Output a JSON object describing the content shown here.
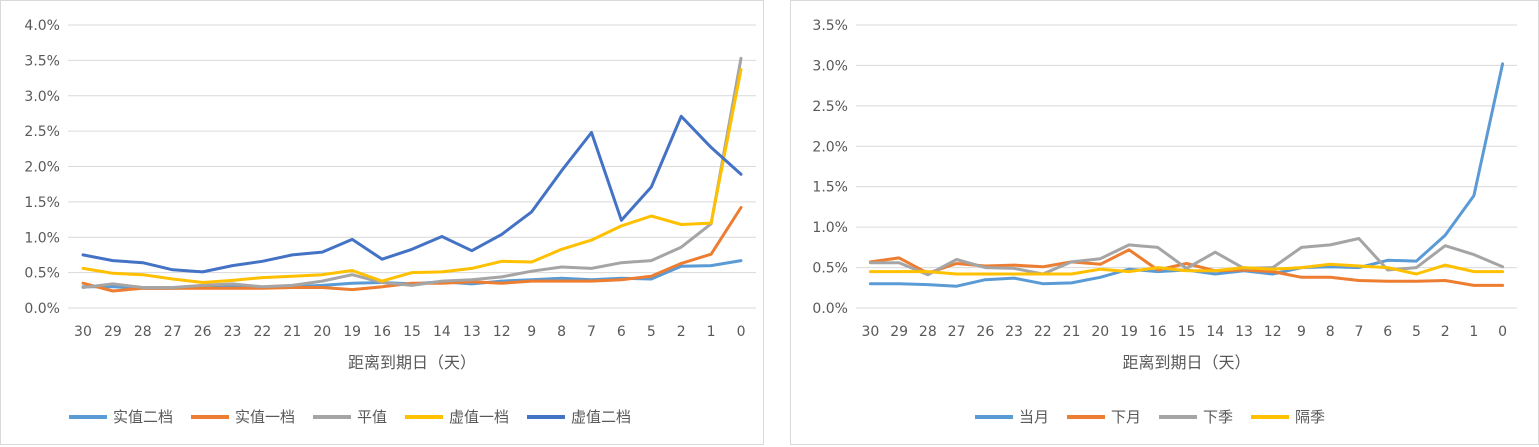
{
  "chart_data": [
    {
      "type": "line",
      "xlabel": "距离到期日（天）",
      "ylabel": "",
      "ylim": [
        0,
        0.04
      ],
      "y_ticks": [
        "0.0%",
        "0.5%",
        "1.0%",
        "1.5%",
        "2.0%",
        "2.5%",
        "3.0%",
        "3.5%",
        "4.0%"
      ],
      "categories": [
        "30",
        "29",
        "28",
        "27",
        "26",
        "23",
        "22",
        "21",
        "20",
        "19",
        "16",
        "15",
        "14",
        "13",
        "12",
        "9",
        "8",
        "7",
        "6",
        "5",
        "2",
        "1",
        "0"
      ],
      "grid": true,
      "legend_position": "bottom",
      "series": [
        {
          "name": "实值二档",
          "color": "#5b9bd5",
          "values": [
            0.003,
            0.003,
            0.0028,
            0.0028,
            0.0029,
            0.0031,
            0.0029,
            0.003,
            0.0032,
            0.0035,
            0.0036,
            0.0034,
            0.0037,
            0.0034,
            0.0038,
            0.004,
            0.0042,
            0.004,
            0.0042,
            0.0041,
            0.0059,
            0.006,
            0.0067
          ]
        },
        {
          "name": "实值一档",
          "color": "#ed7d31",
          "values": [
            0.0035,
            0.0024,
            0.0028,
            0.0028,
            0.0028,
            0.0028,
            0.0028,
            0.0029,
            0.0029,
            0.0026,
            0.003,
            0.0035,
            0.0035,
            0.0037,
            0.0035,
            0.0038,
            0.0038,
            0.0038,
            0.004,
            0.0045,
            0.0063,
            0.0076,
            0.0142
          ]
        },
        {
          "name": "平值",
          "color": "#a5a5a5",
          "values": [
            0.0029,
            0.0034,
            0.0029,
            0.0029,
            0.0032,
            0.0034,
            0.003,
            0.0032,
            0.0038,
            0.0047,
            0.0036,
            0.0032,
            0.0038,
            0.004,
            0.0044,
            0.0052,
            0.0058,
            0.0056,
            0.0064,
            0.0067,
            0.0086,
            0.0119,
            0.0353
          ]
        },
        {
          "name": "虚值一档",
          "color": "#ffc000",
          "values": [
            0.0056,
            0.0049,
            0.0047,
            0.0041,
            0.0036,
            0.0039,
            0.0043,
            0.0045,
            0.0047,
            0.0053,
            0.0038,
            0.005,
            0.0051,
            0.0056,
            0.0066,
            0.0065,
            0.0083,
            0.0096,
            0.0116,
            0.013,
            0.0118,
            0.012,
            0.0337
          ]
        },
        {
          "name": "虚值二档",
          "color": "#4472c4",
          "values": [
            0.0075,
            0.0067,
            0.0064,
            0.0054,
            0.0051,
            0.006,
            0.0066,
            0.0075,
            0.0079,
            0.0097,
            0.0069,
            0.0083,
            0.0101,
            0.0081,
            0.0104,
            0.0136,
            0.0194,
            0.0248,
            0.0124,
            0.0171,
            0.0271,
            0.0227,
            0.0189
          ]
        }
      ]
    },
    {
      "type": "line",
      "xlabel": "距离到期日（天）",
      "ylabel": "",
      "ylim": [
        0,
        0.035
      ],
      "y_ticks": [
        "0.0%",
        "0.5%",
        "1.0%",
        "1.5%",
        "2.0%",
        "2.5%",
        "3.0%",
        "3.5%"
      ],
      "categories": [
        "30",
        "29",
        "28",
        "27",
        "26",
        "23",
        "22",
        "21",
        "20",
        "19",
        "16",
        "15",
        "14",
        "13",
        "12",
        "9",
        "8",
        "7",
        "6",
        "5",
        "2",
        "1",
        "0"
      ],
      "grid": true,
      "legend_position": "bottom",
      "series": [
        {
          "name": "当月",
          "color": "#5b9bd5",
          "values": [
            0.003,
            0.003,
            0.0029,
            0.0027,
            0.0035,
            0.0037,
            0.003,
            0.0031,
            0.0038,
            0.0048,
            0.0045,
            0.0047,
            0.0042,
            0.0046,
            0.0042,
            0.005,
            0.0051,
            0.005,
            0.0059,
            0.0058,
            0.009,
            0.0139,
            0.0302
          ]
        },
        {
          "name": "下月",
          "color": "#ed7d31",
          "values": [
            0.0057,
            0.0062,
            0.0043,
            0.0055,
            0.0052,
            0.0053,
            0.0051,
            0.0057,
            0.0054,
            0.0072,
            0.0047,
            0.0055,
            0.0046,
            0.0047,
            0.0045,
            0.0038,
            0.0038,
            0.0034,
            0.0033,
            0.0033,
            0.0034,
            0.0028,
            0.0028
          ]
        },
        {
          "name": "下季",
          "color": "#a5a5a5",
          "values": [
            0.0056,
            0.0056,
            0.0041,
            0.006,
            0.005,
            0.0049,
            0.0042,
            0.0057,
            0.0061,
            0.0078,
            0.0075,
            0.0049,
            0.0069,
            0.0049,
            0.005,
            0.0075,
            0.0078,
            0.0086,
            0.0047,
            0.005,
            0.0077,
            0.0066,
            0.0051
          ]
        },
        {
          "name": "隔季",
          "color": "#ffc000",
          "values": [
            0.0045,
            0.0045,
            0.0045,
            0.0042,
            0.0042,
            0.0042,
            0.0042,
            0.0042,
            0.0048,
            0.0045,
            0.005,
            0.0046,
            0.0046,
            0.005,
            0.0048,
            0.005,
            0.0054,
            0.0052,
            0.005,
            0.0042,
            0.0053,
            0.0045,
            0.0045
          ]
        }
      ]
    }
  ]
}
